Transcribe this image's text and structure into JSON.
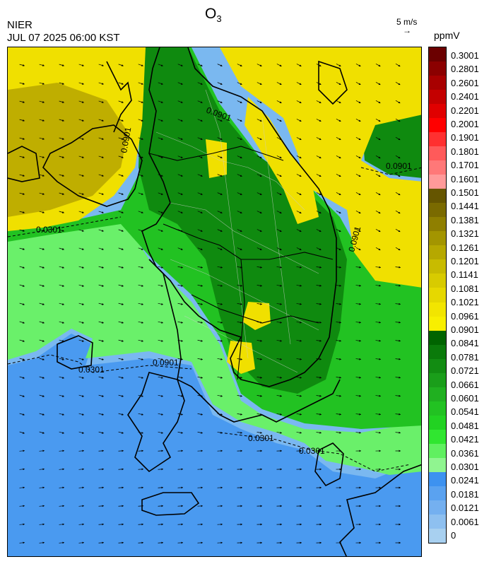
{
  "header": {
    "agency": "NIER",
    "datetime": "JUL 07 2025 06:00 KST",
    "title_main": "O",
    "title_sub": "3",
    "vector_scale": "5 m/s",
    "vector_arrow": "→",
    "unit": "ppmV"
  },
  "colorbar": {
    "labels": [
      "0.3001",
      "0.2801",
      "0.2601",
      "0.2401",
      "0.2201",
      "0.2001",
      "0.1901",
      "0.1801",
      "0.1701",
      "0.1601",
      "0.1501",
      "0.1441",
      "0.1381",
      "0.1321",
      "0.1261",
      "0.1201",
      "0.1141",
      "0.1081",
      "0.1021",
      "0.0961",
      "0.0901",
      "0.0841",
      "0.0781",
      "0.0721",
      "0.0661",
      "0.0601",
      "0.0541",
      "0.0481",
      "0.0421",
      "0.0361",
      "0.0301",
      "0.0241",
      "0.0181",
      "0.0121",
      "0.0061",
      "0"
    ],
    "colors": [
      "#6b0000",
      "#8b0000",
      "#a80000",
      "#c40000",
      "#e00000",
      "#ff0000",
      "#ff3030",
      "#ff5a5a",
      "#ff7878",
      "#ff9a9a",
      "#655500",
      "#7a6a00",
      "#8f7f00",
      "#a39500",
      "#b6a800",
      "#c8bb00",
      "#d8cb00",
      "#e6d800",
      "#f2e500",
      "#f8ef00",
      "#006400",
      "#0a7a0a",
      "#128c12",
      "#1a9e1a",
      "#20b020",
      "#22c222",
      "#22d222",
      "#30e630",
      "#60f060",
      "#90f590",
      "#3d92f0",
      "#5aa2f0",
      "#74b0f0",
      "#8ec0f0",
      "#a8d0f0"
    ]
  },
  "map": {
    "contour_labels": [
      "0.0301",
      "0.0301",
      "0.0301",
      "0.0301",
      "0.0901",
      "0.0901",
      "0.0901",
      "0.0901",
      "0.0901"
    ],
    "colors": {
      "yellow": "#f0e000",
      "olive": "#bfae00",
      "dark_green": "#0f8a0f",
      "green": "#22c222",
      "light_green": "#6af06a",
      "blue": "#4a9af0",
      "light_blue": "#7ab8f0",
      "coast": "#000000"
    }
  }
}
